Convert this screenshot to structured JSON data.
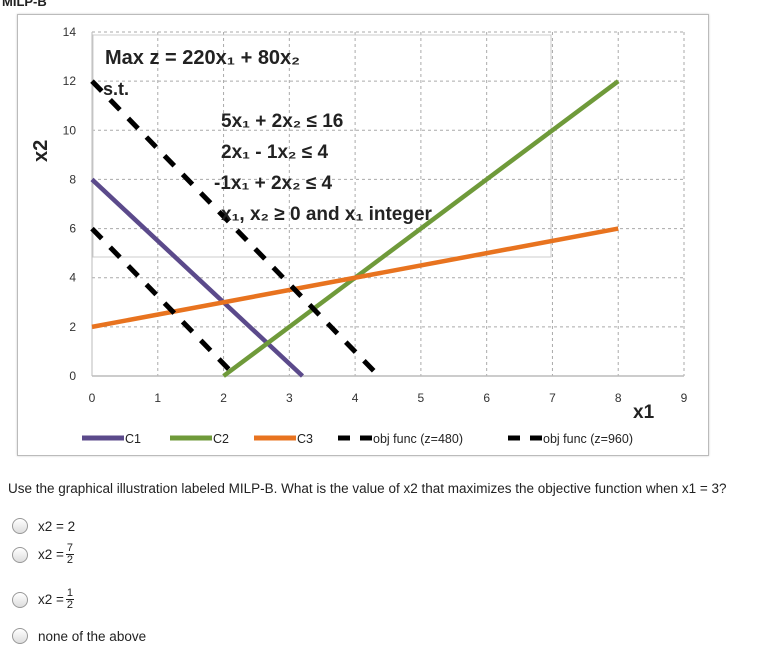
{
  "title": "MILP-B",
  "chart_data": {
    "type": "line",
    "xlabel": "x1",
    "ylabel": "x2",
    "xlim": [
      0,
      9
    ],
    "ylim": [
      0,
      14
    ],
    "xticks": [
      "0",
      "1",
      "2",
      "3",
      "4",
      "5",
      "6",
      "7",
      "8",
      "9"
    ],
    "yticks": [
      "0",
      "2",
      "4",
      "6",
      "8",
      "10",
      "12",
      "14"
    ],
    "grid": true,
    "legend": "bottom",
    "series": [
      {
        "name": "C1",
        "color": "#5b4a8b",
        "dash": false,
        "points": [
          [
            0,
            8
          ],
          [
            3.2,
            0
          ]
        ]
      },
      {
        "name": "C2",
        "color": "#6f9a3a",
        "dash": false,
        "points": [
          [
            2,
            0
          ],
          [
            8,
            12
          ]
        ]
      },
      {
        "name": "C3",
        "color": "#e8731f",
        "dash": false,
        "points": [
          [
            0,
            2
          ],
          [
            8,
            6
          ]
        ]
      },
      {
        "name": "obj func (z=480)",
        "color": "#000000",
        "dash": true,
        "points": [
          [
            0,
            6
          ],
          [
            2.18,
            0
          ]
        ]
      },
      {
        "name": "obj func (z=960)",
        "color": "#000000",
        "dash": true,
        "points": [
          [
            0,
            12
          ],
          [
            4.36,
            0
          ]
        ]
      }
    ],
    "annotation": {
      "objective": "Max z = 220x₁ + 80x₂",
      "st": "s.t.",
      "constraints": [
        "5x₁ + 2x₂ ≤ 16",
        "2x₁ - 1x₂ ≤ 4",
        "-1x₁ + 2x₂ ≤ 4",
        "x₁, x₂ ≥ 0 and x₁ integer"
      ]
    }
  },
  "question": "Use the graphical illustration labeled MILP-B. What is the value of x2 that maximizes the objective function when x1 = 3?",
  "options": [
    {
      "label": "x2 = 2"
    },
    {
      "label": "x2 =",
      "num": "7",
      "den": "2"
    },
    {
      "label": "x2 =",
      "num": "1",
      "den": "2"
    },
    {
      "label": "none of the above"
    }
  ]
}
